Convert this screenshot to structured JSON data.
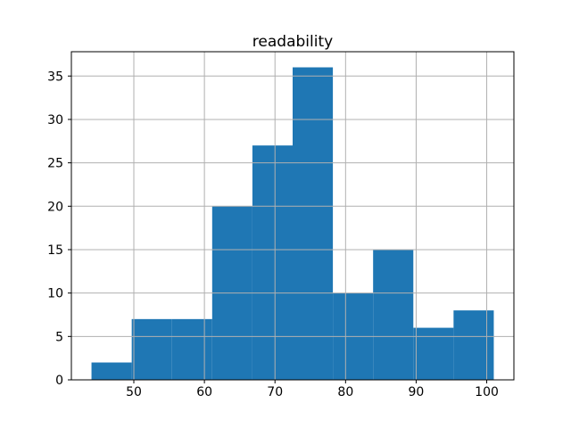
{
  "chart_data": {
    "type": "bar",
    "subtype": "histogram",
    "title": "readability",
    "xlabel": "",
    "ylabel": "",
    "bin_edges": [
      44.0,
      49.7,
      55.4,
      61.1,
      66.8,
      72.5,
      78.2,
      83.9,
      89.6,
      95.3,
      101.0
    ],
    "counts": [
      2,
      7,
      7,
      20,
      27,
      36,
      10,
      15,
      6,
      8
    ],
    "xticks": [
      50,
      60,
      70,
      80,
      90,
      100
    ],
    "yticks": [
      0,
      5,
      10,
      15,
      20,
      25,
      30,
      35
    ],
    "xlim": [
      41.15,
      103.85
    ],
    "ylim": [
      0,
      37.8
    ],
    "grid": true,
    "grid_above_bars": true,
    "legend": "none",
    "bar_color": "#1f77b4",
    "grid_color": "#b0b0b0",
    "spine_color": "#000000",
    "background_color": "#ffffff"
  }
}
